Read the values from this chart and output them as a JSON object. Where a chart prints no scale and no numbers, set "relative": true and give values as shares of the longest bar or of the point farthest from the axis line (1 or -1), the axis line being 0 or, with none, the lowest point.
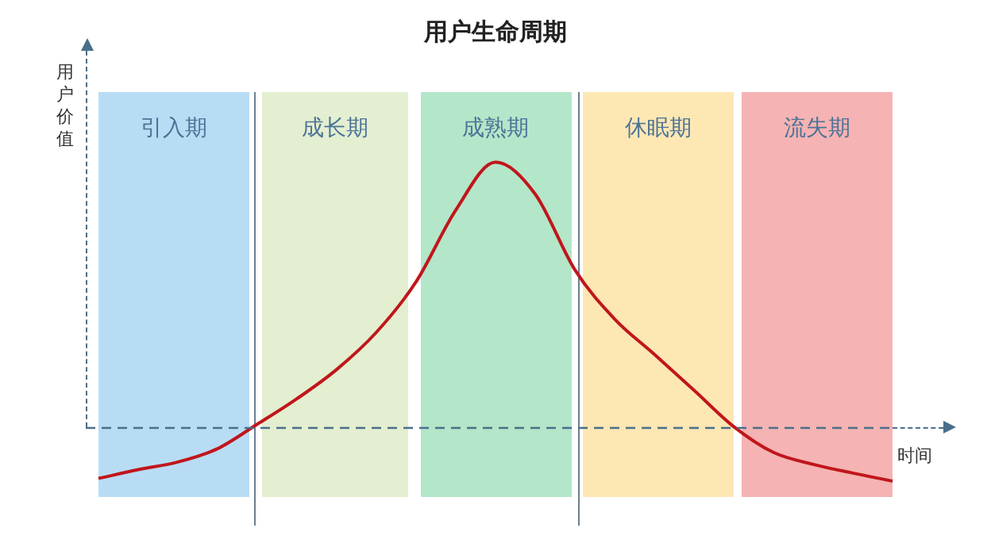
{
  "chart_data": {
    "type": "line",
    "title": "用户生命周期",
    "xlabel": "时间",
    "ylabel": "用户价值",
    "relative": true,
    "grid": false,
    "legend": false,
    "marker": "none",
    "line_style": "solid",
    "categories": [
      null,
      null,
      null,
      null,
      null,
      null,
      null,
      null,
      null,
      null,
      null,
      null,
      null,
      null,
      null,
      null,
      null,
      null,
      null,
      null,
      null
    ],
    "series": [
      {
        "color": "#c0161b",
        "values": [
          -0.19,
          -0.157,
          -0.128,
          -0.078,
          0.014,
          0.11,
          0.22,
          0.36,
          0.55,
          0.82,
          1,
          0.88,
          0.595,
          0.41,
          0.277,
          0.142,
          0.005,
          -0.092,
          -0.137,
          -0.17,
          -0.2
        ]
      }
    ],
    "annotations": [
      "引入期",
      "成长期",
      "成熟期",
      "休眠期",
      "流失期"
    ],
    "ref_lines": [
      {
        "axis": "y",
        "value": 0,
        "color": "#4a6f8a",
        "line_style": "dashed"
      }
    ]
  }
}
